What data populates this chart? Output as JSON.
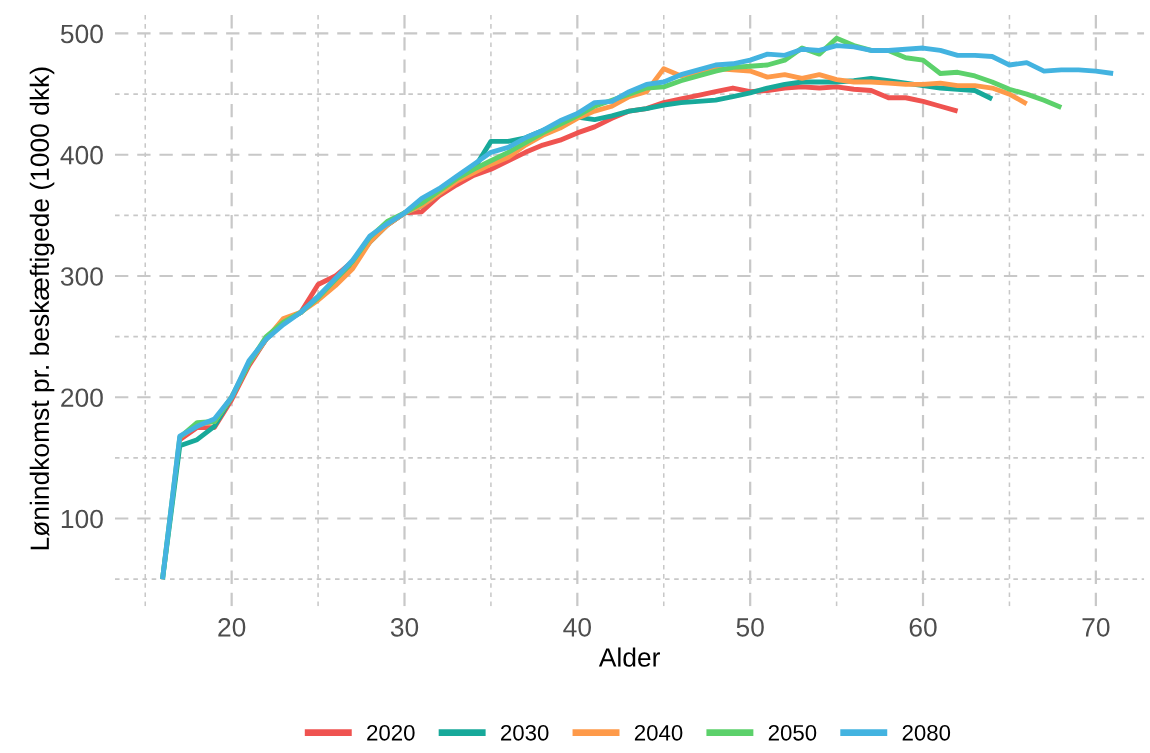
{
  "chart_data": {
    "type": "line",
    "xlabel": "Alder",
    "ylabel": "Lønindkomst pr. beskæftigede (1000 dkk)",
    "xlim": [
      13.25,
      72.8
    ],
    "ylim": [
      27.7,
      518.3
    ],
    "xticks": [
      {
        "value": 15,
        "label": null
      },
      20,
      {
        "value": 25,
        "label": null
      },
      30,
      {
        "value": 35,
        "label": null
      },
      40,
      {
        "value": 45,
        "label": null
      },
      50,
      {
        "value": 55,
        "label": null
      },
      60,
      {
        "value": 65,
        "label": null
      },
      70
    ],
    "yticks": [
      {
        "value": 50,
        "label": null
      },
      100,
      {
        "value": 150,
        "label": null
      },
      200,
      {
        "value": 250,
        "label": null
      },
      300,
      {
        "value": 350,
        "label": null
      },
      400,
      {
        "value": 450,
        "label": null
      },
      500
    ],
    "grid": true,
    "legend": "bottom",
    "line_style": "solid",
    "series": [
      {
        "name": "2020",
        "color": "#ef5350",
        "x": [
          17,
          18,
          19,
          20,
          21,
          22,
          23,
          24,
          25,
          26,
          27,
          28,
          29,
          30,
          31,
          32,
          33,
          34,
          35,
          36,
          37,
          38,
          39,
          40,
          41,
          42,
          43,
          44,
          45,
          46,
          47,
          48,
          49,
          50,
          51,
          52,
          53,
          54,
          55,
          56,
          57,
          58,
          59,
          60,
          61,
          62
        ],
        "values": [
          165,
          175,
          175,
          198,
          226,
          248,
          262,
          270,
          293,
          300,
          312,
          330,
          342,
          352,
          353,
          366,
          375,
          383,
          388,
          395,
          402,
          408,
          412,
          418,
          423,
          430,
          436,
          438,
          443,
          446,
          449,
          452,
          455,
          452,
          453,
          455,
          456,
          455,
          456,
          454,
          453,
          447,
          447,
          444,
          440,
          436
        ]
      },
      {
        "name": "2030",
        "color": "#17a99a",
        "x": [
          16,
          17,
          18,
          19,
          20,
          21,
          22,
          23,
          24,
          25,
          26,
          27,
          28,
          29,
          30,
          31,
          32,
          33,
          34,
          35,
          36,
          37,
          38,
          39,
          40,
          41,
          42,
          43,
          44,
          45,
          46,
          47,
          48,
          49,
          50,
          51,
          52,
          53,
          54,
          55,
          56,
          57,
          58,
          59,
          60,
          61,
          62,
          63,
          64
        ],
        "values": [
          50,
          160,
          165,
          176,
          200,
          228,
          248,
          262,
          270,
          283,
          297,
          310,
          328,
          342,
          352,
          358,
          368,
          380,
          388,
          411,
          411,
          414,
          420,
          426,
          431,
          429,
          432,
          436,
          438,
          441,
          443,
          444,
          445,
          448,
          451,
          455,
          458,
          460,
          460,
          460,
          461,
          463,
          461,
          459,
          457,
          455,
          454,
          453,
          446
        ]
      },
      {
        "name": "2040",
        "color": "#fe9a4a",
        "x": [
          17,
          18,
          19,
          20,
          21,
          22,
          23,
          24,
          25,
          26,
          27,
          28,
          29,
          30,
          31,
          32,
          33,
          34,
          35,
          36,
          37,
          38,
          39,
          40,
          41,
          42,
          43,
          44,
          45,
          46,
          47,
          48,
          49,
          50,
          51,
          52,
          53,
          54,
          55,
          56,
          57,
          58,
          59,
          60,
          61,
          62,
          63,
          64,
          65,
          66
        ],
        "values": [
          167,
          177,
          180,
          200,
          228,
          248,
          265,
          270,
          280,
          292,
          306,
          328,
          342,
          352,
          358,
          368,
          378,
          385,
          392,
          398,
          408,
          416,
          422,
          430,
          436,
          440,
          448,
          452,
          471,
          465,
          468,
          471,
          470,
          469,
          464,
          466,
          463,
          466,
          462,
          460,
          460,
          459,
          458,
          458,
          459,
          457,
          457,
          455,
          450,
          442
        ]
      },
      {
        "name": "2050",
        "color": "#5cd16b",
        "x": [
          16,
          17,
          18,
          19,
          20,
          21,
          22,
          23,
          24,
          25,
          26,
          27,
          28,
          29,
          30,
          31,
          32,
          33,
          34,
          35,
          36,
          37,
          38,
          39,
          40,
          41,
          42,
          43,
          44,
          45,
          46,
          47,
          48,
          49,
          50,
          51,
          52,
          53,
          54,
          55,
          56,
          57,
          58,
          59,
          60,
          61,
          62,
          63,
          64,
          65,
          66,
          67,
          68
        ],
        "values": [
          50,
          167,
          179,
          180,
          200,
          228,
          250,
          262,
          270,
          282,
          297,
          312,
          332,
          345,
          352,
          360,
          370,
          380,
          388,
          395,
          402,
          410,
          418,
          425,
          432,
          440,
          445,
          450,
          455,
          456,
          461,
          465,
          469,
          472,
          473,
          474,
          478,
          488,
          483,
          496,
          490,
          486,
          486,
          480,
          478,
          467,
          468,
          465,
          460,
          454,
          450,
          445,
          439
        ]
      },
      {
        "name": "2080",
        "color": "#43b3e0",
        "x": [
          16,
          17,
          18,
          19,
          20,
          21,
          22,
          23,
          24,
          25,
          26,
          27,
          28,
          29,
          30,
          31,
          32,
          33,
          34,
          35,
          36,
          37,
          38,
          39,
          40,
          41,
          42,
          43,
          44,
          45,
          46,
          47,
          48,
          49,
          50,
          51,
          52,
          53,
          54,
          55,
          56,
          57,
          58,
          59,
          60,
          61,
          62,
          63,
          64,
          65,
          66,
          67,
          68,
          69,
          70,
          71
        ],
        "values": [
          50,
          168,
          176,
          182,
          200,
          230,
          248,
          260,
          270,
          283,
          298,
          313,
          333,
          343,
          352,
          364,
          372,
          382,
          392,
          402,
          406,
          414,
          420,
          428,
          434,
          443,
          444,
          452,
          458,
          460,
          466,
          470,
          474,
          475,
          478,
          483,
          482,
          487,
          486,
          490,
          489,
          486,
          486,
          487,
          488,
          486,
          482,
          482,
          481,
          474,
          476,
          469,
          470,
          470,
          469,
          467
        ]
      }
    ]
  }
}
